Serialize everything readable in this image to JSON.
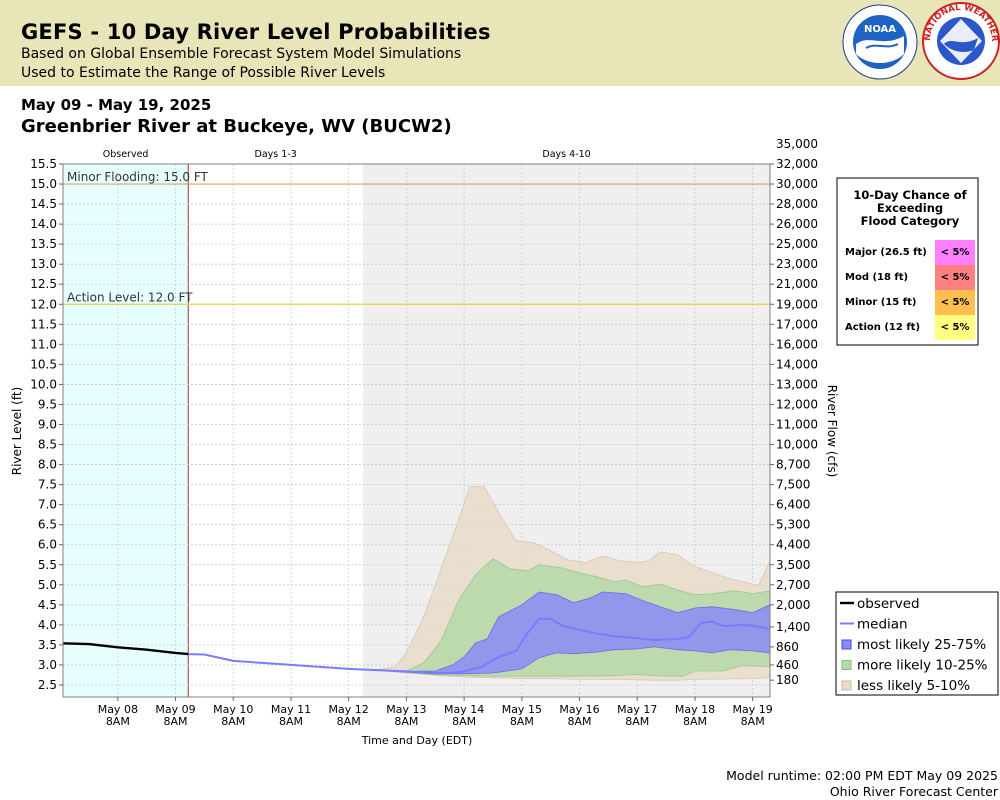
{
  "header": {
    "title": "GEFS - 10 Day River Level Probabilities",
    "subtitle1": "Based on Global Ensemble Forecast System Model Simulations",
    "subtitle2": "Used to Estimate the Range of Possible River Levels",
    "date_range": "May 09 - May 19, 2025",
    "station": "Greenbrier River at Buckeye, WV (BUCW2)"
  },
  "logos": {
    "noaa_text": "NOAA",
    "nws_text": "NATIONAL WEATHER SERVICE"
  },
  "footer": {
    "runtime": "Model runtime: 02:00 PM EDT May 09 2025",
    "center": "Ohio River Forecast Center"
  },
  "colors": {
    "observed": "#000000",
    "median": "#7b7bff",
    "band_25_75": "#8b8bf7",
    "band_10_25": "#b7d9a9",
    "band_5_10": "#e9dccb",
    "observed_bg": "#e6ffff",
    "days410_bg": "#efefef",
    "minor_line": "#e0a060",
    "action_line": "#e6d24e",
    "major_cell": "#ff80ff",
    "mod_cell": "#ff8080",
    "minor_cell": "#ffbf4f",
    "action_cell": "#ffff80"
  },
  "chart_data": {
    "type": "area",
    "xlabel": "Time and Day (EDT)",
    "ylabel": "River Level (ft)",
    "ylabel_right": "River Flow (cfs)",
    "ylim": [
      2.2,
      15.5
    ],
    "y_ticks": [
      "2.5",
      "3.0",
      "3.5",
      "4.0",
      "4.5",
      "5.0",
      "5.5",
      "6.0",
      "6.5",
      "7.0",
      "7.5",
      "8.0",
      "8.5",
      "9.0",
      "9.5",
      "10.0",
      "10.5",
      "11.0",
      "11.5",
      "12.0",
      "12.5",
      "13.0",
      "13.5",
      "14.0",
      "14.5",
      "15.0",
      "15.5"
    ],
    "right_ticks": [
      {
        "stage": 2.62,
        "label": "180"
      },
      {
        "stage": 3.0,
        "label": "460"
      },
      {
        "stage": 3.45,
        "label": "860"
      },
      {
        "stage": 3.95,
        "label": "1,400"
      },
      {
        "stage": 4.5,
        "label": "2,000"
      },
      {
        "stage": 5.0,
        "label": "2,700"
      },
      {
        "stage": 5.5,
        "label": "3,500"
      },
      {
        "stage": 6.0,
        "label": "4,400"
      },
      {
        "stage": 6.5,
        "label": "5,300"
      },
      {
        "stage": 7.0,
        "label": "6,400"
      },
      {
        "stage": 7.5,
        "label": "7,500"
      },
      {
        "stage": 8.0,
        "label": "8,700"
      },
      {
        "stage": 8.5,
        "label": "10,000"
      },
      {
        "stage": 9.0,
        "label": "11,000"
      },
      {
        "stage": 9.5,
        "label": "12,000"
      },
      {
        "stage": 10.0,
        "label": "13,000"
      },
      {
        "stage": 10.5,
        "label": "14,000"
      },
      {
        "stage": 11.0,
        "label": "16,000"
      },
      {
        "stage": 11.5,
        "label": "17,000"
      },
      {
        "stage": 12.0,
        "label": "19,000"
      },
      {
        "stage": 12.5,
        "label": "21,000"
      },
      {
        "stage": 13.0,
        "label": "23,000"
      },
      {
        "stage": 13.5,
        "label": "25,000"
      },
      {
        "stage": 14.0,
        "label": "26,000"
      },
      {
        "stage": 14.5,
        "label": "28,000"
      },
      {
        "stage": 15.0,
        "label": "30,000"
      },
      {
        "stage": 15.5,
        "label": "32,000"
      },
      {
        "stage": 16.0,
        "label": "35,000"
      }
    ],
    "x_ticks": [
      {
        "d": 1,
        "day": "May 08",
        "time": "8AM"
      },
      {
        "d": 2,
        "day": "May 09",
        "time": "8AM"
      },
      {
        "d": 3,
        "day": "May 10",
        "time": "8AM"
      },
      {
        "d": 4,
        "day": "May 11",
        "time": "8AM"
      },
      {
        "d": 5,
        "day": "May 12",
        "time": "8AM"
      },
      {
        "d": 6,
        "day": "May 13",
        "time": "8AM"
      },
      {
        "d": 7,
        "day": "May 14",
        "time": "8AM"
      },
      {
        "d": 8,
        "day": "May 15",
        "time": "8AM"
      },
      {
        "d": 9,
        "day": "May 16",
        "time": "8AM"
      },
      {
        "d": 10,
        "day": "May 17",
        "time": "8AM"
      },
      {
        "d": 11,
        "day": "May 18",
        "time": "8AM"
      },
      {
        "d": 12,
        "day": "May 19",
        "time": "8AM"
      }
    ],
    "x_range": [
      0.05,
      12.3
    ],
    "regions": [
      {
        "label": "Observed",
        "from": 0.05,
        "to": 2.22
      },
      {
        "label": "Days 1-3",
        "from": 2.22,
        "to": 5.25
      },
      {
        "label": "Days 4-10",
        "from": 5.25,
        "to": 12.3
      }
    ],
    "thresholds": [
      {
        "name": "minor",
        "label": "Minor Flooding: 15.0 FT",
        "value": 15.0
      },
      {
        "name": "action",
        "label": "Action Level: 12.0 FT",
        "value": 12.0
      }
    ],
    "series": [
      {
        "name": "observed",
        "points": [
          [
            0.05,
            3.54
          ],
          [
            0.5,
            3.52
          ],
          [
            1.0,
            3.44
          ],
          [
            1.5,
            3.38
          ],
          [
            2.0,
            3.3
          ],
          [
            2.22,
            3.27
          ]
        ]
      },
      {
        "name": "median",
        "points": [
          [
            2.22,
            3.27
          ],
          [
            2.5,
            3.26
          ],
          [
            3.0,
            3.1
          ],
          [
            3.5,
            3.05
          ],
          [
            4.0,
            3.0
          ],
          [
            4.5,
            2.95
          ],
          [
            5.0,
            2.9
          ],
          [
            5.5,
            2.87
          ],
          [
            6.0,
            2.84
          ],
          [
            6.5,
            2.8
          ],
          [
            6.8,
            2.8
          ],
          [
            7.0,
            2.84
          ],
          [
            7.3,
            2.95
          ],
          [
            7.6,
            3.2
          ],
          [
            7.9,
            3.35
          ],
          [
            8.1,
            3.8
          ],
          [
            8.3,
            4.15
          ],
          [
            8.5,
            4.15
          ],
          [
            8.7,
            3.98
          ],
          [
            9.0,
            3.88
          ],
          [
            9.3,
            3.78
          ],
          [
            9.6,
            3.72
          ],
          [
            10.0,
            3.67
          ],
          [
            10.3,
            3.62
          ],
          [
            10.7,
            3.65
          ],
          [
            10.9,
            3.7
          ],
          [
            11.1,
            4.05
          ],
          [
            11.3,
            4.08
          ],
          [
            11.5,
            3.97
          ],
          [
            11.8,
            4.0
          ],
          [
            12.0,
            3.98
          ],
          [
            12.3,
            3.9
          ]
        ]
      },
      {
        "name": "most likely 25-75%",
        "upper": [
          [
            5.5,
            2.87
          ],
          [
            6.0,
            2.84
          ],
          [
            6.5,
            2.85
          ],
          [
            6.8,
            3.0
          ],
          [
            7.0,
            3.2
          ],
          [
            7.2,
            3.55
          ],
          [
            7.4,
            3.65
          ],
          [
            7.6,
            4.2
          ],
          [
            8.0,
            4.5
          ],
          [
            8.3,
            4.82
          ],
          [
            8.6,
            4.75
          ],
          [
            8.9,
            4.55
          ],
          [
            9.2,
            4.68
          ],
          [
            9.4,
            4.82
          ],
          [
            9.8,
            4.78
          ],
          [
            10.1,
            4.6
          ],
          [
            10.4,
            4.45
          ],
          [
            10.7,
            4.3
          ],
          [
            11.0,
            4.42
          ],
          [
            11.3,
            4.45
          ],
          [
            11.7,
            4.38
          ],
          [
            12.0,
            4.3
          ],
          [
            12.3,
            4.5
          ]
        ],
        "lower": [
          [
            5.5,
            2.87
          ],
          [
            6.0,
            2.82
          ],
          [
            6.5,
            2.78
          ],
          [
            7.0,
            2.78
          ],
          [
            7.5,
            2.8
          ],
          [
            8.0,
            2.9
          ],
          [
            8.3,
            3.18
          ],
          [
            8.6,
            3.3
          ],
          [
            8.9,
            3.28
          ],
          [
            9.3,
            3.32
          ],
          [
            9.6,
            3.38
          ],
          [
            10.0,
            3.4
          ],
          [
            10.3,
            3.45
          ],
          [
            10.7,
            3.38
          ],
          [
            11.0,
            3.35
          ],
          [
            11.3,
            3.3
          ],
          [
            11.6,
            3.38
          ],
          [
            12.0,
            3.35
          ],
          [
            12.3,
            3.3
          ]
        ]
      },
      {
        "name": "more likely 10-25%",
        "upper": [
          [
            5.5,
            2.87
          ],
          [
            6.0,
            2.85
          ],
          [
            6.3,
            3.05
          ],
          [
            6.6,
            3.6
          ],
          [
            6.9,
            4.6
          ],
          [
            7.2,
            5.25
          ],
          [
            7.5,
            5.65
          ],
          [
            7.8,
            5.4
          ],
          [
            8.1,
            5.35
          ],
          [
            8.3,
            5.5
          ],
          [
            8.7,
            5.42
          ],
          [
            9.0,
            5.3
          ],
          [
            9.3,
            5.2
          ],
          [
            9.6,
            5.08
          ],
          [
            9.8,
            5.12
          ],
          [
            10.1,
            4.95
          ],
          [
            10.4,
            5.02
          ],
          [
            10.7,
            4.87
          ],
          [
            11.0,
            4.75
          ],
          [
            11.3,
            4.78
          ],
          [
            11.7,
            4.85
          ],
          [
            12.0,
            4.78
          ],
          [
            12.3,
            4.85
          ]
        ],
        "lower": [
          [
            5.5,
            2.86
          ],
          [
            6.0,
            2.82
          ],
          [
            6.5,
            2.76
          ],
          [
            7.0,
            2.73
          ],
          [
            7.5,
            2.72
          ],
          [
            8.0,
            2.72
          ],
          [
            8.5,
            2.72
          ],
          [
            9.0,
            2.72
          ],
          [
            9.5,
            2.73
          ],
          [
            10.0,
            2.76
          ],
          [
            10.5,
            2.72
          ],
          [
            10.8,
            2.72
          ],
          [
            11.0,
            2.85
          ],
          [
            11.5,
            2.85
          ],
          [
            11.8,
            2.98
          ],
          [
            12.3,
            2.96
          ]
        ]
      },
      {
        "name": "less likely 5-10%",
        "upper": [
          [
            5.5,
            2.88
          ],
          [
            5.8,
            2.95
          ],
          [
            6.0,
            3.3
          ],
          [
            6.3,
            4.2
          ],
          [
            6.5,
            5.0
          ],
          [
            6.7,
            5.8
          ],
          [
            6.9,
            6.6
          ],
          [
            7.1,
            7.45
          ],
          [
            7.35,
            7.45
          ],
          [
            7.6,
            6.8
          ],
          [
            7.9,
            6.1
          ],
          [
            8.2,
            6.05
          ],
          [
            8.5,
            5.85
          ],
          [
            8.8,
            5.62
          ],
          [
            9.1,
            5.55
          ],
          [
            9.4,
            5.72
          ],
          [
            9.7,
            5.6
          ],
          [
            10.0,
            5.55
          ],
          [
            10.2,
            5.6
          ],
          [
            10.4,
            5.82
          ],
          [
            10.7,
            5.75
          ],
          [
            11.0,
            5.45
          ],
          [
            11.3,
            5.3
          ],
          [
            11.6,
            5.15
          ],
          [
            11.9,
            5.05
          ],
          [
            12.1,
            4.98
          ],
          [
            12.3,
            5.6
          ]
        ],
        "lower": [
          [
            5.5,
            2.86
          ],
          [
            6.0,
            2.8
          ],
          [
            6.5,
            2.74
          ],
          [
            7.0,
            2.7
          ],
          [
            7.5,
            2.68
          ],
          [
            8.0,
            2.66
          ],
          [
            8.5,
            2.66
          ],
          [
            9.0,
            2.64
          ],
          [
            9.5,
            2.64
          ],
          [
            10.0,
            2.63
          ],
          [
            10.3,
            2.62
          ],
          [
            10.7,
            2.62
          ],
          [
            11.0,
            2.64
          ],
          [
            11.5,
            2.65
          ],
          [
            12.0,
            2.66
          ],
          [
            12.3,
            2.68
          ]
        ]
      }
    ],
    "legend": {
      "placement": "bottom-right",
      "entries": [
        "observed",
        "median",
        "most likely 25-75%",
        "more likely 10-25%",
        "less likely 5-10%"
      ]
    },
    "flood_table": {
      "title_lines": [
        "10-Day Chance of",
        "Exceeding",
        "Flood Category"
      ],
      "rows": [
        {
          "label": "Major (26.5 ft)",
          "value": "< 5%"
        },
        {
          "label": "Mod (18 ft)",
          "value": "< 5%"
        },
        {
          "label": "Minor (15 ft)",
          "value": "< 5%"
        },
        {
          "label": "Action (12 ft)",
          "value": "< 5%"
        }
      ]
    }
  }
}
